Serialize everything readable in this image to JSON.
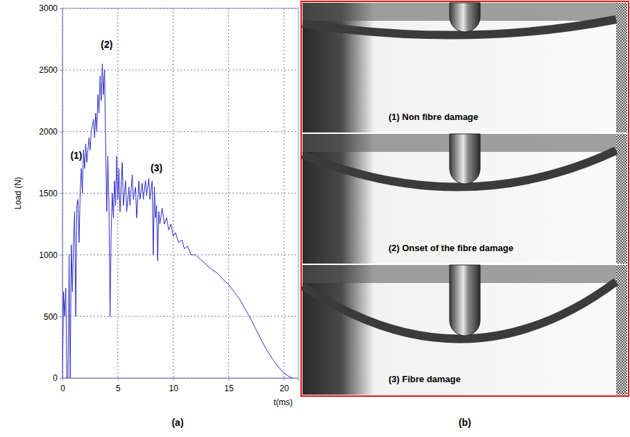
{
  "chart_data": {
    "type": "line",
    "caption": "(a)",
    "x_label": "t(ms)",
    "y_label": "Load (N)",
    "color": "#2b2bc4",
    "grid": true,
    "xlim": [
      0,
      21.3
    ],
    "ylim": [
      0,
      3000
    ],
    "xticks": [
      0,
      5,
      10,
      15,
      20
    ],
    "yticks": [
      0,
      500,
      1000,
      1500,
      2000,
      2500,
      3000
    ],
    "x": [
      0,
      0.1,
      0.2,
      0.3,
      0.4,
      0.5,
      0.6,
      0.7,
      0.8,
      0.9,
      1.0,
      1.1,
      1.2,
      1.3,
      1.4,
      1.5,
      1.6,
      1.7,
      1.8,
      1.9,
      2.0,
      2.1,
      2.2,
      2.4,
      2.5,
      2.6,
      2.8,
      2.9,
      3.0,
      3.1,
      3.2,
      3.3,
      3.4,
      3.5,
      3.6,
      3.7,
      3.8,
      3.9,
      4.0,
      4.1,
      4.2,
      4.3,
      4.4,
      4.5,
      4.6,
      4.7,
      4.8,
      4.9,
      5.0,
      5.1,
      5.2,
      5.4,
      5.5,
      5.7,
      5.8,
      6.0,
      6.1,
      6.3,
      6.4,
      6.6,
      6.7,
      6.9,
      7.0,
      7.2,
      7.3,
      7.5,
      7.6,
      7.8,
      7.9,
      8.1,
      8.2,
      8.3,
      8.4,
      8.5,
      8.6,
      8.7,
      8.8,
      9.0,
      9.2,
      9.4,
      9.6,
      9.8,
      10.0,
      10.2,
      10.5,
      10.8,
      11.0,
      11.3,
      11.6,
      12.0,
      12.5,
      13.0,
      13.5,
      14.0,
      14.5,
      15.0,
      15.5,
      16.0,
      16.5,
      17.0,
      17.5,
      18.0,
      18.5,
      19.0,
      19.5,
      20.0,
      20.5,
      20.8
    ],
    "values": [
      0,
      700,
      500,
      730,
      0,
      0,
      1000,
      0,
      1080,
      700,
      1100,
      1350,
      500,
      1400,
      1450,
      1100,
      1500,
      1700,
      1500,
      1850,
      1700,
      1900,
      1750,
      1950,
      1850,
      2000,
      2100,
      1950,
      2150,
      2000,
      2300,
      2150,
      2450,
      2250,
      2550,
      2300,
      2500,
      1900,
      1350,
      1800,
      1400,
      500,
      1200,
      1500,
      1300,
      1600,
      1400,
      1800,
      1450,
      1700,
      1350,
      1750,
      1400,
      1600,
      1350,
      1550,
      1400,
      1650,
      1450,
      1550,
      1300,
      1600,
      1450,
      1580,
      1450,
      1600,
      1480,
      1620,
      1450,
      1600,
      1000,
      1550,
      1300,
      1400,
      950,
      1350,
      1250,
      1380,
      1250,
      1300,
      1200,
      1250,
      1150,
      1180,
      1100,
      1120,
      1050,
      1070,
      1000,
      1000,
      960,
      920,
      880,
      850,
      800,
      760,
      700,
      640,
      560,
      480,
      390,
      300,
      220,
      150,
      90,
      40,
      10,
      0
    ],
    "annotations": [
      {
        "text": "(1)",
        "x": 1.25,
        "y": 1780
      },
      {
        "text": "(2)",
        "x": 4.0,
        "y": 2680
      },
      {
        "text": "(3)",
        "x": 8.5,
        "y": 1680
      }
    ]
  },
  "panel_b": {
    "caption": "(b)",
    "captions": [
      "(1) Non fibre damage",
      "(2) Onset of the fibre damage",
      "(3) Fibre damage"
    ]
  }
}
